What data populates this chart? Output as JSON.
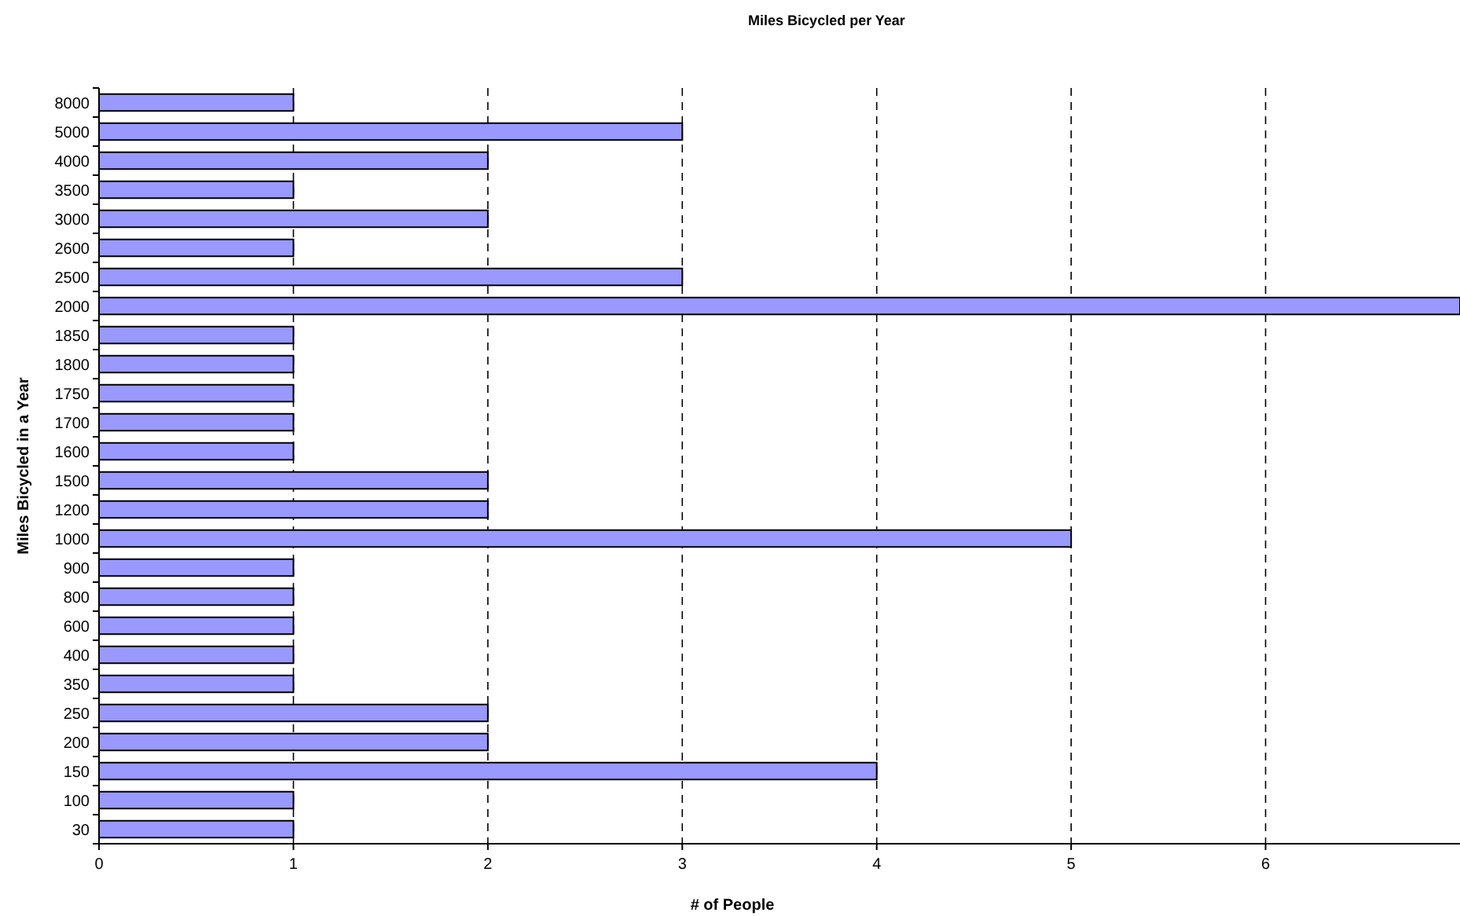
{
  "chart_data": {
    "type": "bar",
    "orientation": "horizontal",
    "title": "Miles Bicycled per Year",
    "xlabel": "# of People",
    "ylabel": "Miles Bicycled in a Year",
    "categories": [
      "8000",
      "5000",
      "4000",
      "3500",
      "3000",
      "2600",
      "2500",
      "2000",
      "1850",
      "1800",
      "1750",
      "1700",
      "1600",
      "1500",
      "1200",
      "1000",
      "900",
      "800",
      "600",
      "400",
      "350",
      "250",
      "200",
      "150",
      "100",
      "30"
    ],
    "values": [
      1,
      3,
      2,
      1,
      2,
      1,
      3,
      7,
      1,
      1,
      1,
      1,
      1,
      2,
      2,
      5,
      1,
      1,
      1,
      1,
      1,
      2,
      2,
      4,
      1,
      1
    ],
    "color": "#9999ff",
    "xlim": [
      0,
      7
    ],
    "xticks": [
      0,
      1,
      2,
      3,
      4,
      5,
      6
    ],
    "grid": "x"
  }
}
